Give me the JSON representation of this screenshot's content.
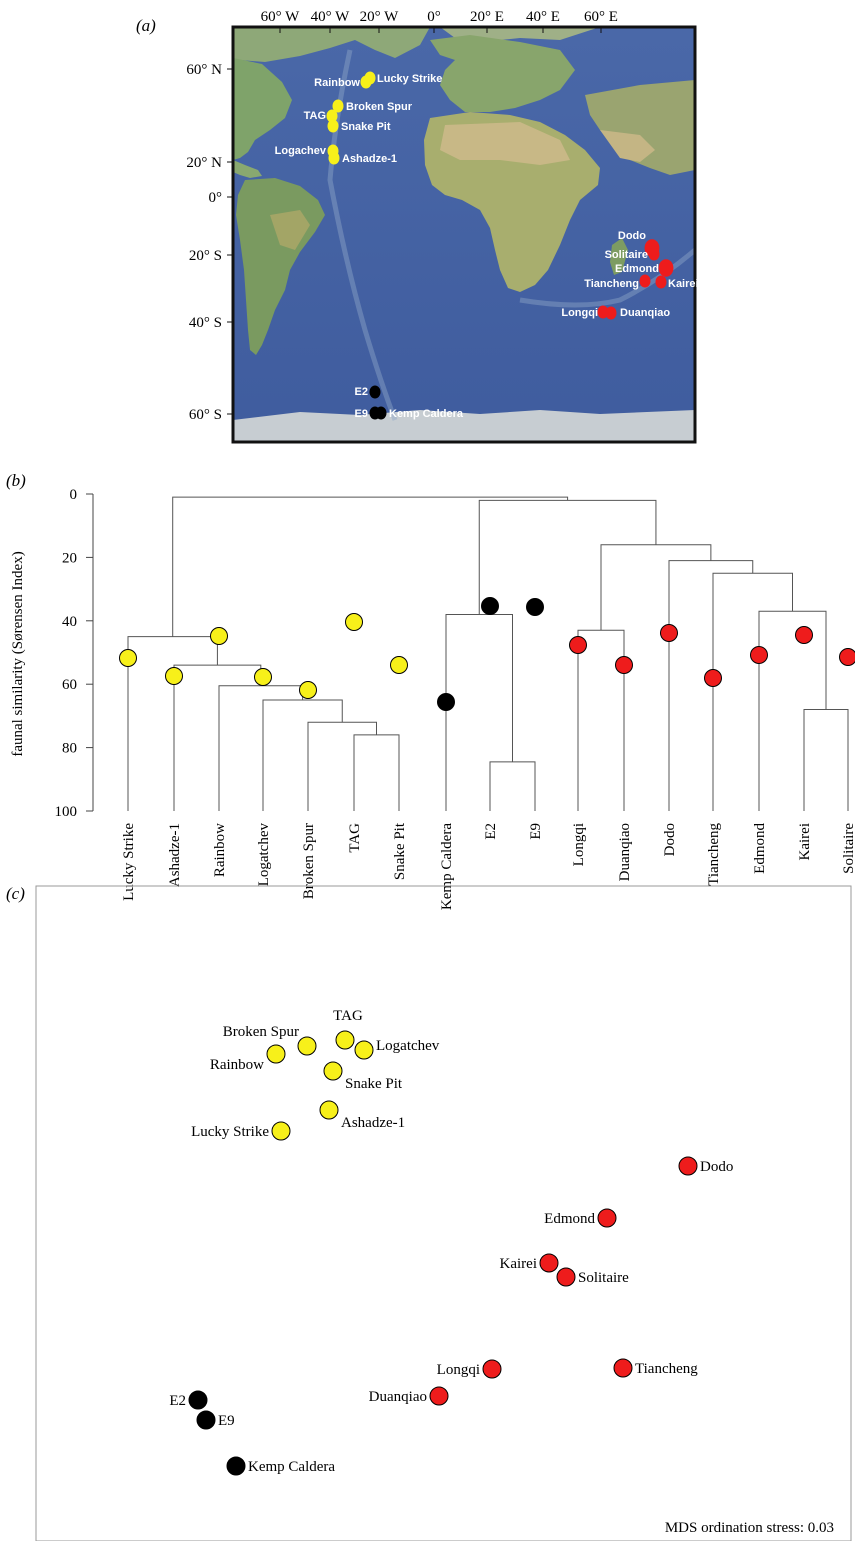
{
  "panel_labels": {
    "a": "(a)",
    "b": "(b)",
    "c": "(c)"
  },
  "map": {
    "lon_labels": [
      "60° W",
      "40° W",
      "20° W",
      "0°",
      "20° E",
      "40° E",
      "60° E"
    ],
    "lat_labels": [
      "60° N",
      "20° N",
      "0°",
      "20° S",
      "40° S",
      "60° S"
    ],
    "sites": [
      {
        "name": "Rainbow",
        "group": "atlantic"
      },
      {
        "name": "Lucky Strike",
        "group": "atlantic"
      },
      {
        "name": "Broken Spur",
        "group": "atlantic"
      },
      {
        "name": "TAG",
        "group": "atlantic"
      },
      {
        "name": "Snake Pit",
        "group": "atlantic"
      },
      {
        "name": "Logachev",
        "group": "atlantic"
      },
      {
        "name": "Ashadze-1",
        "group": "atlantic"
      },
      {
        "name": "Dodo",
        "group": "indian"
      },
      {
        "name": "Solitaire",
        "group": "indian"
      },
      {
        "name": "Edmond",
        "group": "indian"
      },
      {
        "name": "Tiancheng",
        "group": "indian"
      },
      {
        "name": "Kairei",
        "group": "indian"
      },
      {
        "name": "Longqi",
        "group": "indian"
      },
      {
        "name": "Duanqiao",
        "group": "indian"
      },
      {
        "name": "E2",
        "group": "southern"
      },
      {
        "name": "E9",
        "group": "southern"
      },
      {
        "name": "Kemp Caldera",
        "group": "southern"
      }
    ]
  },
  "colors": {
    "atlantic": "#f7f01a",
    "indian": "#ee1c1c",
    "southern": "#000000"
  },
  "dendrogram": {
    "ylabel": "faunal similarity (Sørensen Index)",
    "yticks": [
      0,
      20,
      40,
      60,
      80,
      100
    ],
    "leaves": [
      {
        "name": "Lucky Strike",
        "group": "atlantic"
      },
      {
        "name": "Ashadze-1",
        "group": "atlantic"
      },
      {
        "name": "Rainbow",
        "group": "atlantic"
      },
      {
        "name": "Logatchev",
        "group": "atlantic"
      },
      {
        "name": "Broken Spur",
        "group": "atlantic"
      },
      {
        "name": "TAG",
        "group": "atlantic"
      },
      {
        "name": "Snake Pit",
        "group": "atlantic"
      },
      {
        "name": "Kemp Caldera",
        "group": "southern"
      },
      {
        "name": "E2",
        "group": "southern"
      },
      {
        "name": "E9",
        "group": "southern"
      },
      {
        "name": "Longqi",
        "group": "indian"
      },
      {
        "name": "Duanqiao",
        "group": "indian"
      },
      {
        "name": "Dodo",
        "group": "indian"
      },
      {
        "name": "Tiancheng",
        "group": "indian"
      },
      {
        "name": "Edmond",
        "group": "indian"
      },
      {
        "name": "Kairei",
        "group": "indian"
      },
      {
        "name": "Solitaire",
        "group": "indian"
      }
    ],
    "merges": [
      {
        "a": "TAG",
        "b": "Snake Pit",
        "sim": 76
      },
      {
        "a": "Broken Spur",
        "b": "TAG+Snake Pit",
        "sim": 72
      },
      {
        "a": "Logatchev",
        "b": "BS-group",
        "sim": 65
      },
      {
        "a": "Rainbow",
        "b": "LG-group",
        "sim": 60.5
      },
      {
        "a": "Ashadze-1",
        "b": "RB-group",
        "sim": 54
      },
      {
        "a": "Lucky Strike",
        "b": "MAR",
        "sim": 45
      },
      {
        "a": "E2",
        "b": "E9",
        "sim": 84.5
      },
      {
        "a": "Kemp Caldera",
        "b": "E2+E9",
        "sim": 38
      },
      {
        "a": "Kairei",
        "b": "Solitaire",
        "sim": 68
      },
      {
        "a": "Edmond",
        "b": "KS",
        "sim": 37
      },
      {
        "a": "Tiancheng",
        "b": "EKS",
        "sim": 25
      },
      {
        "a": "Dodo",
        "b": "TEKS",
        "sim": 21
      },
      {
        "a": "Longqi",
        "b": "Duanqiao",
        "sim": 43
      },
      {
        "a": "LD",
        "b": "DTEKS",
        "sim": 16
      },
      {
        "a": "ESR",
        "b": "SWIR-CIR",
        "sim": 2
      },
      {
        "a": "MAR",
        "b": "rest",
        "sim": 1
      }
    ]
  },
  "chart_data": {
    "type": "scatter",
    "title": "",
    "xlabel": "",
    "ylabel": "",
    "annotation": "MDS ordination stress: 0.03",
    "points": [
      {
        "name": "Broken Spur",
        "group": "atlantic",
        "x": 307,
        "y": 690
      },
      {
        "name": "TAG",
        "group": "atlantic",
        "x": 345,
        "y": 684
      },
      {
        "name": "Logatchev",
        "group": "atlantic",
        "x": 364,
        "y": 694
      },
      {
        "name": "Rainbow",
        "group": "atlantic",
        "x": 276,
        "y": 698
      },
      {
        "name": "Snake Pit",
        "group": "atlantic",
        "x": 333,
        "y": 715
      },
      {
        "name": "Ashadze-1",
        "group": "atlantic",
        "x": 329,
        "y": 754
      },
      {
        "name": "Lucky Strike",
        "group": "atlantic",
        "x": 281,
        "y": 775
      },
      {
        "name": "Dodo",
        "group": "indian",
        "x": 688,
        "y": 810
      },
      {
        "name": "Edmond",
        "group": "indian",
        "x": 607,
        "y": 862
      },
      {
        "name": "Kairei",
        "group": "indian",
        "x": 549,
        "y": 907
      },
      {
        "name": "Solitaire",
        "group": "indian",
        "x": 566,
        "y": 921
      },
      {
        "name": "Longqi",
        "group": "indian",
        "x": 492,
        "y": 1013
      },
      {
        "name": "Tiancheng",
        "group": "indian",
        "x": 623,
        "y": 1012
      },
      {
        "name": "Duanqiao",
        "group": "indian",
        "x": 439,
        "y": 1040
      },
      {
        "name": "E2",
        "group": "southern",
        "x": 198,
        "y": 1044
      },
      {
        "name": "E9",
        "group": "southern",
        "x": 206,
        "y": 1064
      },
      {
        "name": "Kemp Caldera",
        "group": "southern",
        "x": 236,
        "y": 1110
      }
    ]
  }
}
